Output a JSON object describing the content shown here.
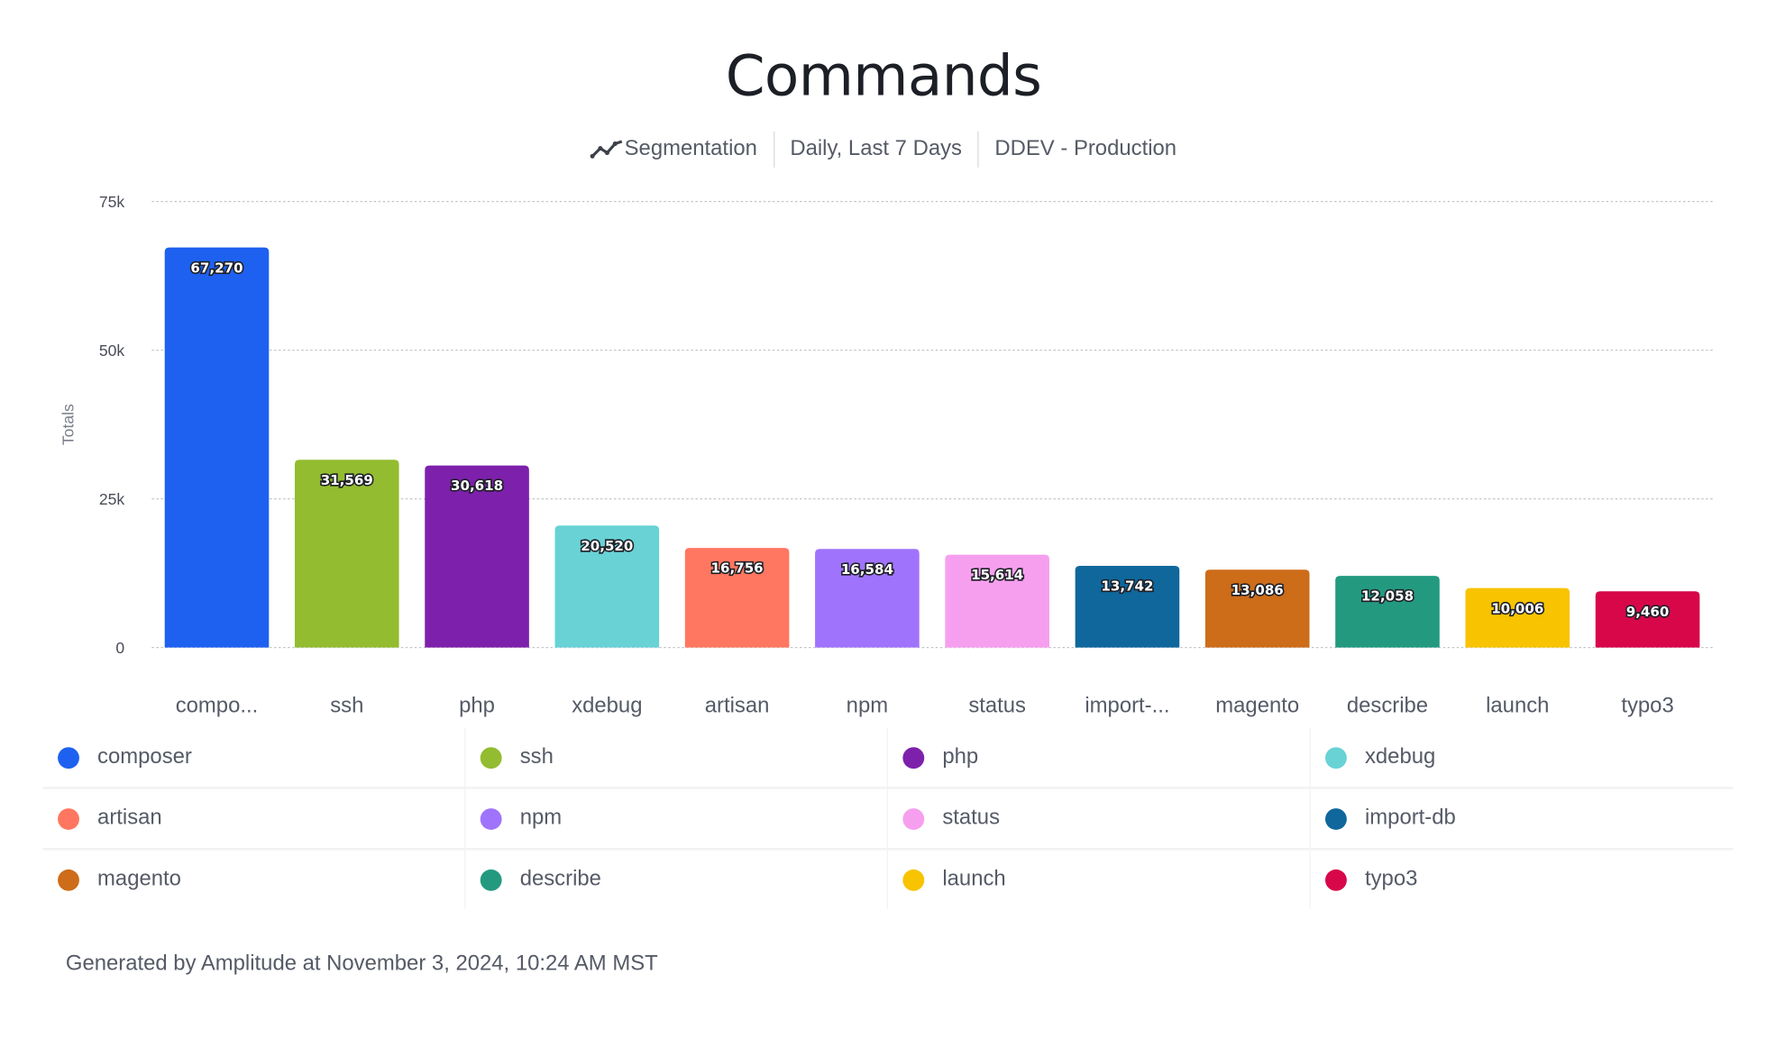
{
  "header": {
    "title": "Commands",
    "subtitle_items": [
      "Segmentation",
      "Daily, Last 7 Days",
      "DDEV - Production"
    ],
    "segmentation_icon": "line-chart-icon"
  },
  "chart_data": {
    "type": "bar",
    "title": "Commands",
    "ylabel": "Totals",
    "xlabel": "",
    "ylim": [
      0,
      75000
    ],
    "yticks": [
      0,
      25000,
      50000,
      75000
    ],
    "ytick_labels": [
      "0",
      "25k",
      "50k",
      "75k"
    ],
    "grid": true,
    "legend_placement": "bottom",
    "categories": [
      "composer",
      "ssh",
      "php",
      "xdebug",
      "artisan",
      "npm",
      "status",
      "import-db",
      "magento",
      "describe",
      "launch",
      "typo3"
    ],
    "category_labels": [
      "compo...",
      "ssh",
      "php",
      "xdebug",
      "artisan",
      "npm",
      "status",
      "import-...",
      "magento",
      "describe",
      "launch",
      "typo3"
    ],
    "values": [
      67270,
      31569,
      30618,
      20520,
      16756,
      16584,
      15614,
      13742,
      13086,
      12058,
      10006,
      9460
    ],
    "value_labels": [
      "67,270",
      "31,569",
      "30,618",
      "20,520",
      "16,756",
      "16,584",
      "15,614",
      "13,742",
      "13,086",
      "12,058",
      "10,006",
      "9,460"
    ],
    "colors": [
      "#1E61F0",
      "#93BC30",
      "#7D20AB",
      "#68D2D5",
      "#FF7760",
      "#A073FC",
      "#F79FEF",
      "#0F679C",
      "#CD6C19",
      "#239A80",
      "#F8C300",
      "#D7074A"
    ]
  },
  "footer": {
    "text": "Generated by Amplitude at November 3, 2024, 10:24 AM MST"
  }
}
